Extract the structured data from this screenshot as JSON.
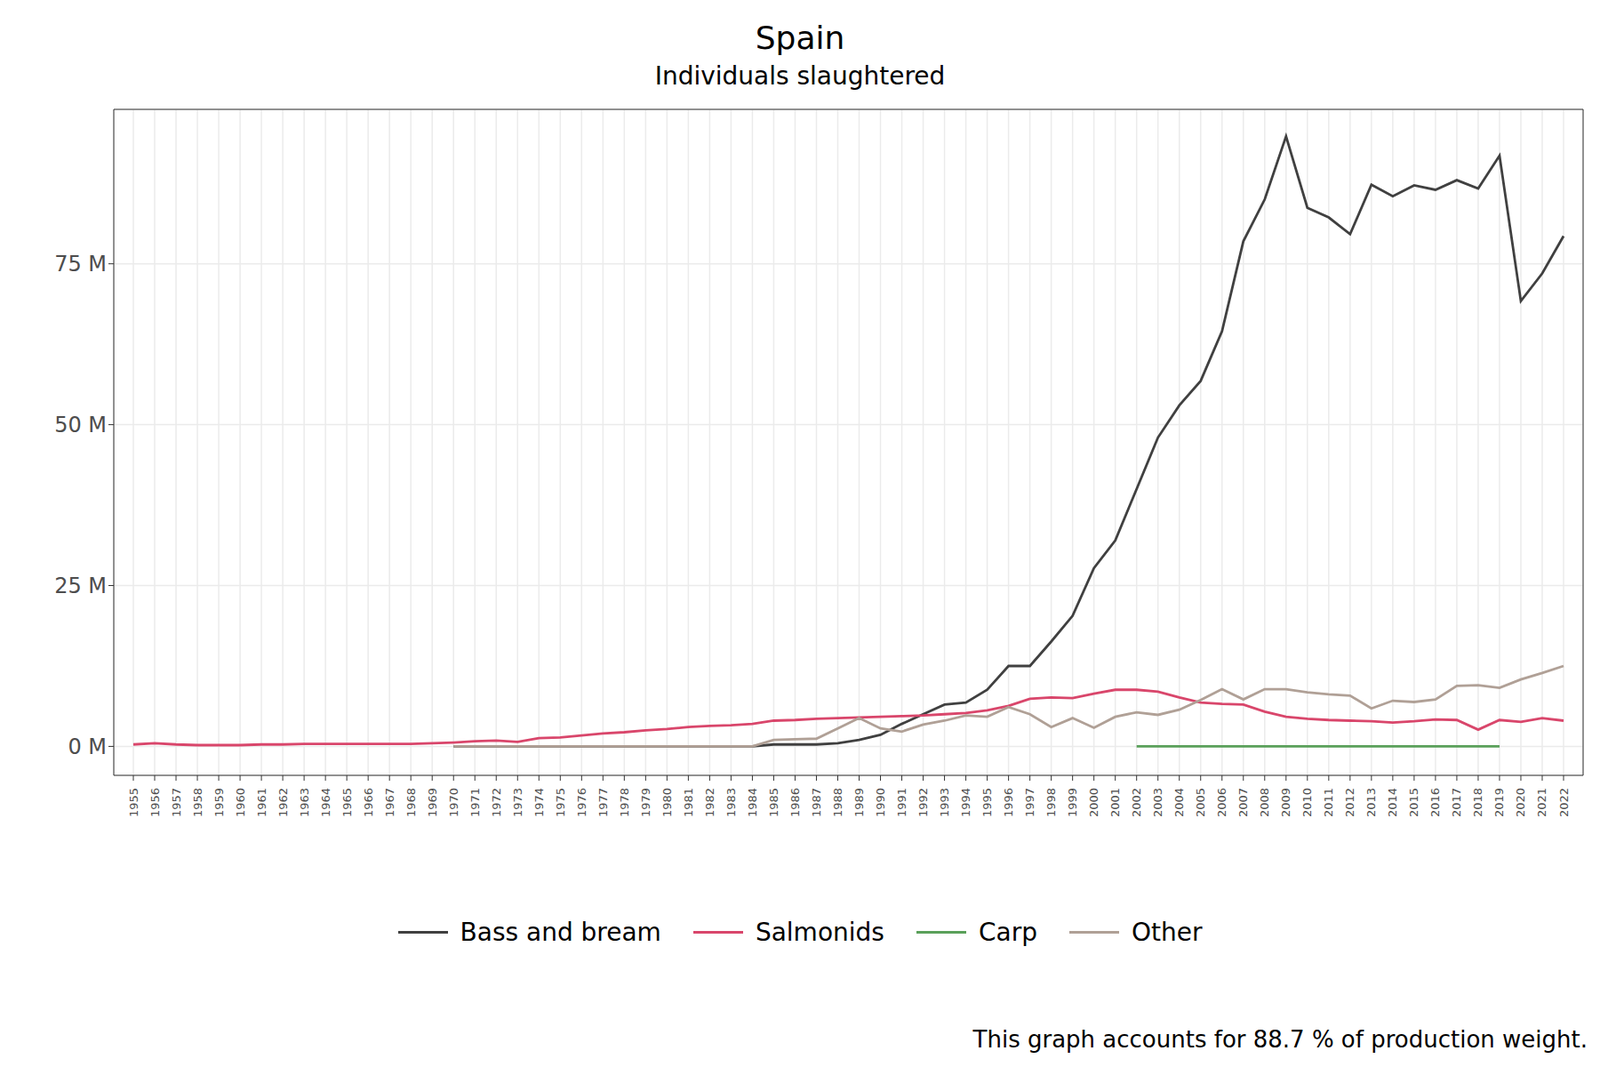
{
  "chart_data": {
    "type": "line",
    "title": "Spain",
    "subtitle": "Individuals slaughtered",
    "caption": "This graph accounts for 88.7 % of production weight.",
    "x": [
      1955,
      1956,
      1957,
      1958,
      1959,
      1960,
      1961,
      1962,
      1963,
      1964,
      1965,
      1966,
      1967,
      1968,
      1969,
      1970,
      1971,
      1972,
      1973,
      1974,
      1975,
      1976,
      1977,
      1978,
      1979,
      1980,
      1981,
      1982,
      1983,
      1984,
      1985,
      1986,
      1987,
      1988,
      1989,
      1990,
      1991,
      1992,
      1993,
      1994,
      1995,
      1996,
      1997,
      1998,
      1999,
      2000,
      2001,
      2002,
      2003,
      2004,
      2005,
      2006,
      2007,
      2008,
      2009,
      2010,
      2011,
      2012,
      2013,
      2014,
      2015,
      2016,
      2017,
      2018,
      2019,
      2020,
      2021,
      2022
    ],
    "ylim": [
      -4.5,
      99
    ],
    "yticks": [
      {
        "value": 0,
        "label": "0 M"
      },
      {
        "value": 25,
        "label": "25 M"
      },
      {
        "value": 50,
        "label": "50 M"
      },
      {
        "value": 75,
        "label": "75 M"
      }
    ],
    "grid": true,
    "legend": "bottom",
    "series": [
      {
        "name": "Bass and bream",
        "color": "#404040",
        "values": [
          null,
          null,
          null,
          null,
          null,
          null,
          null,
          null,
          null,
          null,
          null,
          null,
          null,
          null,
          null,
          0,
          0,
          0,
          0,
          0,
          0,
          0,
          0,
          0,
          0,
          0,
          0,
          0,
          0,
          0,
          0.3,
          0.3,
          0.3,
          0.5,
          1.0,
          1.8,
          3.5,
          5.0,
          6.5,
          6.8,
          8.8,
          12.5,
          12.5,
          16.3,
          20.3,
          27.7,
          32,
          40,
          48,
          53,
          56.8,
          64.5,
          78.5,
          85,
          94.8,
          83.7,
          82.2,
          79.6,
          87.3,
          85.5,
          87.2,
          86.5,
          88,
          86.7,
          91.8,
          69.2,
          73.5,
          79.3
        ]
      },
      {
        "name": "Salmonids",
        "color": "#d9466b",
        "values": [
          0.3,
          0.5,
          0.3,
          0.2,
          0.2,
          0.2,
          0.3,
          0.3,
          0.4,
          0.4,
          0.4,
          0.4,
          0.4,
          0.4,
          0.5,
          0.6,
          0.8,
          0.9,
          0.7,
          1.3,
          1.4,
          1.7,
          2.0,
          2.2,
          2.5,
          2.7,
          3.0,
          3.2,
          3.3,
          3.5,
          4.0,
          4.1,
          4.3,
          4.4,
          4.5,
          4.6,
          4.7,
          4.8,
          5.0,
          5.2,
          5.6,
          6.3,
          7.4,
          7.6,
          7.5,
          8.2,
          8.8,
          8.8,
          8.5,
          7.6,
          6.8,
          6.6,
          6.5,
          5.4,
          4.6,
          4.3,
          4.1,
          4.0,
          3.9,
          3.7,
          3.9,
          4.2,
          4.1,
          2.6,
          4.1,
          3.8,
          4.4,
          4.0
        ]
      },
      {
        "name": "Carp",
        "color": "#5aa05a",
        "values": [
          null,
          null,
          null,
          null,
          null,
          null,
          null,
          null,
          null,
          null,
          null,
          null,
          null,
          null,
          null,
          null,
          null,
          null,
          null,
          null,
          null,
          null,
          null,
          null,
          null,
          null,
          null,
          null,
          null,
          null,
          null,
          null,
          null,
          null,
          null,
          null,
          null,
          null,
          null,
          null,
          null,
          null,
          null,
          null,
          null,
          null,
          null,
          0,
          0,
          0,
          0,
          0,
          0,
          0,
          0,
          0,
          0,
          0,
          0,
          0,
          0,
          0,
          0,
          0,
          0,
          null,
          null,
          null
        ]
      },
      {
        "name": "Other",
        "color": "#b0a096",
        "values": [
          null,
          null,
          null,
          null,
          null,
          null,
          null,
          null,
          null,
          null,
          null,
          null,
          null,
          null,
          null,
          0,
          0,
          0,
          0,
          0,
          0,
          0,
          0,
          0,
          0,
          0,
          0,
          0,
          0,
          0,
          1.0,
          1.1,
          1.2,
          2.8,
          4.4,
          2.8,
          2.3,
          3.4,
          4.0,
          4.8,
          4.6,
          6.1,
          5.0,
          3.0,
          4.4,
          2.9,
          4.6,
          5.3,
          4.9,
          5.7,
          7.2,
          8.9,
          7.3,
          8.9,
          8.9,
          8.4,
          8.1,
          7.9,
          5.9,
          7.1,
          6.9,
          7.3,
          9.4,
          9.5,
          9.1,
          10.4,
          11.4,
          12.5
        ]
      }
    ]
  }
}
